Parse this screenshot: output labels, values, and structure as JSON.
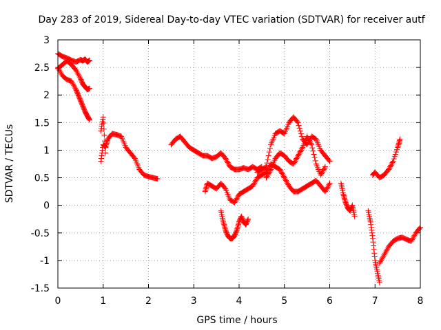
{
  "chart_data": {
    "type": "scatter",
    "title": "Day 283 of 2019, Sidereal Day-to-day VTEC variation (SDTVAR) for receiver autf",
    "xlabel": "GPS time / hours",
    "ylabel": "SDTVAR / TECUs",
    "xlim": [
      0,
      8
    ],
    "ylim": [
      -1.5,
      3
    ],
    "x_ticks": [
      0,
      1,
      2,
      3,
      4,
      5,
      6,
      7,
      8
    ],
    "x_tick_labels": [
      "0",
      "1",
      "2",
      "3",
      "4",
      "5",
      "6",
      "7",
      "8"
    ],
    "y_ticks": [
      -1.5,
      -1,
      -0.5,
      0,
      0.5,
      1,
      1.5,
      2,
      2.5,
      3
    ],
    "y_tick_labels": [
      "-1.5",
      "-1",
      "-0.5",
      "0",
      "0.5",
      "1",
      "1.5",
      "2",
      "2.5",
      "3"
    ],
    "grid": true,
    "marker": "+",
    "color": "#ff0000",
    "series": [
      {
        "name": "s1",
        "x": [
          0.0,
          0.1,
          0.2,
          0.3,
          0.4,
          0.5,
          0.55,
          0.6,
          0.65,
          0.7
        ],
        "y": [
          2.75,
          2.7,
          2.67,
          2.63,
          2.6,
          2.64,
          2.62,
          2.65,
          2.6,
          2.63
        ]
      },
      {
        "name": "s2",
        "x": [
          0.0,
          0.1,
          0.2,
          0.3,
          0.4,
          0.5,
          0.55,
          0.6,
          0.65,
          0.7
        ],
        "y": [
          2.48,
          2.55,
          2.62,
          2.55,
          2.45,
          2.3,
          2.2,
          2.15,
          2.1,
          2.12
        ]
      },
      {
        "name": "s3",
        "x": [
          0.0,
          0.1,
          0.2,
          0.3,
          0.4,
          0.45,
          0.5,
          0.55,
          0.6,
          0.65,
          0.7
        ],
        "y": [
          2.5,
          2.35,
          2.28,
          2.25,
          2.1,
          2.0,
          1.9,
          1.8,
          1.7,
          1.62,
          1.55
        ]
      },
      {
        "name": "s4",
        "x": [
          0.95,
          1.0,
          1.05,
          1.1,
          1.2,
          1.3,
          1.4,
          1.5,
          1.6,
          1.7,
          1.8,
          1.9,
          2.0,
          2.1,
          2.2
        ],
        "y": [
          0.8,
          1.1,
          1.05,
          1.2,
          1.3,
          1.28,
          1.25,
          1.05,
          0.95,
          0.85,
          0.65,
          0.55,
          0.52,
          0.5,
          0.48
        ]
      },
      {
        "name": "s5",
        "x": [
          0.95,
          1.0,
          1.05
        ],
        "y": [
          1.35,
          1.6,
          0.95
        ]
      },
      {
        "name": "s6",
        "x": [
          2.5,
          2.6,
          2.7,
          2.8,
          2.9,
          3.0,
          3.1,
          3.2,
          3.3,
          3.4,
          3.5,
          3.6,
          3.7,
          3.8,
          3.9,
          4.0,
          4.1,
          4.2,
          4.3,
          4.4,
          4.5
        ],
        "y": [
          1.1,
          1.2,
          1.25,
          1.15,
          1.05,
          1.0,
          0.95,
          0.9,
          0.9,
          0.85,
          0.88,
          0.95,
          0.85,
          0.7,
          0.65,
          0.65,
          0.68,
          0.65,
          0.7,
          0.65,
          0.7
        ]
      },
      {
        "name": "s7",
        "x": [
          3.25,
          3.3,
          3.4,
          3.5,
          3.6,
          3.7,
          3.8,
          3.9,
          4.0,
          4.1,
          4.2,
          4.3,
          4.4,
          4.5,
          4.6,
          4.7,
          4.8,
          4.9,
          5.0,
          5.1,
          5.2,
          5.3,
          5.4,
          5.5,
          5.6,
          5.7,
          5.8,
          5.9,
          6.0
        ],
        "y": [
          0.25,
          0.4,
          0.35,
          0.3,
          0.4,
          0.3,
          0.1,
          0.05,
          0.2,
          0.25,
          0.3,
          0.35,
          0.5,
          0.55,
          0.6,
          0.75,
          0.7,
          0.65,
          0.5,
          0.35,
          0.25,
          0.25,
          0.3,
          0.35,
          0.4,
          0.45,
          0.35,
          0.25,
          0.4
        ]
      },
      {
        "name": "s8",
        "x": [
          3.6,
          3.65,
          3.7,
          3.75,
          3.8,
          3.85,
          3.9,
          3.95,
          4.0,
          4.05,
          4.1,
          4.15,
          4.2
        ],
        "y": [
          -0.1,
          -0.3,
          -0.45,
          -0.55,
          -0.6,
          -0.6,
          -0.55,
          -0.45,
          -0.3,
          -0.2,
          -0.3,
          -0.35,
          -0.25
        ]
      },
      {
        "name": "s9",
        "x": [
          4.4,
          4.5,
          4.6,
          4.7,
          4.8,
          4.9,
          5.0,
          5.1,
          5.2,
          5.3,
          5.4,
          5.5,
          5.6,
          5.7,
          5.8,
          5.9,
          6.0
        ],
        "y": [
          0.6,
          0.65,
          0.7,
          1.1,
          1.3,
          1.35,
          1.3,
          1.5,
          1.6,
          1.5,
          1.2,
          1.1,
          1.25,
          1.2,
          1.0,
          0.9,
          0.8
        ]
      },
      {
        "name": "s10",
        "x": [
          4.6,
          4.7,
          4.8,
          4.9,
          5.0,
          5.1,
          5.2,
          5.3,
          5.4,
          5.5,
          5.6,
          5.7,
          5.8,
          5.9
        ],
        "y": [
          0.5,
          0.65,
          0.85,
          0.95,
          0.9,
          0.8,
          0.75,
          0.9,
          1.05,
          1.25,
          1.1,
          0.75,
          0.55,
          0.7
        ]
      },
      {
        "name": "s11",
        "x": [
          6.25,
          6.3,
          6.35,
          6.4,
          6.45,
          6.5,
          6.55
        ],
        "y": [
          0.4,
          0.2,
          0.05,
          -0.05,
          -0.1,
          0.0,
          -0.2
        ]
      },
      {
        "name": "s12",
        "x": [
          6.85,
          6.9,
          6.95,
          7.0,
          7.05,
          7.1
        ],
        "y": [
          -0.1,
          -0.3,
          -0.6,
          -1.0,
          -1.2,
          -1.4
        ]
      },
      {
        "name": "s13",
        "x": [
          6.95,
          7.0,
          7.1,
          7.2,
          7.3,
          7.4,
          7.5,
          7.55
        ],
        "y": [
          0.55,
          0.6,
          0.5,
          0.55,
          0.65,
          0.8,
          1.05,
          1.2
        ]
      },
      {
        "name": "s14",
        "x": [
          7.1,
          7.2,
          7.3,
          7.4,
          7.5,
          7.6,
          7.7,
          7.8,
          7.9,
          8.0
        ],
        "y": [
          -1.05,
          -0.9,
          -0.75,
          -0.65,
          -0.6,
          -0.58,
          -0.62,
          -0.65,
          -0.5,
          -0.4
        ]
      }
    ]
  }
}
